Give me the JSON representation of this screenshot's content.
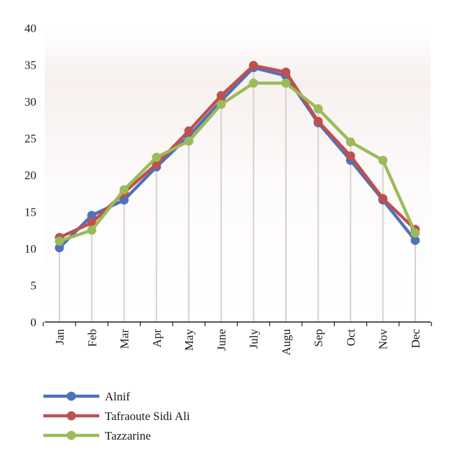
{
  "chart_data": {
    "type": "line",
    "title": "",
    "xlabel": "",
    "ylabel": "",
    "categories": [
      "Jan",
      "Feb",
      "Mar",
      "Apr",
      "May",
      "June",
      "July",
      "Augu",
      "Sep",
      "Oct",
      "Nov",
      "Dec"
    ],
    "ylim": [
      0,
      40
    ],
    "yticks": [
      0,
      5,
      10,
      15,
      20,
      25,
      30,
      35,
      40
    ],
    "grid": "vertical drop lines at each category",
    "legend_position": "bottom-left",
    "series": [
      {
        "name": "Alnif",
        "color": "#4f72b8",
        "values": [
          10.1,
          14.5,
          16.6,
          21.1,
          25.3,
          30.1,
          34.6,
          33.5,
          27.1,
          22.0,
          16.6,
          11.1
        ]
      },
      {
        "name": "Tafraoute Sidi Ali",
        "color": "#c0504d",
        "values": [
          11.5,
          13.5,
          17.6,
          21.5,
          26.0,
          30.8,
          34.9,
          34.0,
          27.3,
          22.6,
          16.8,
          12.6
        ]
      },
      {
        "name": "Tazzarine",
        "color": "#9bbb59",
        "values": [
          11.0,
          12.5,
          18.0,
          22.4,
          24.6,
          29.6,
          32.5,
          32.5,
          29.0,
          24.5,
          22.0,
          12.1
        ]
      }
    ]
  }
}
